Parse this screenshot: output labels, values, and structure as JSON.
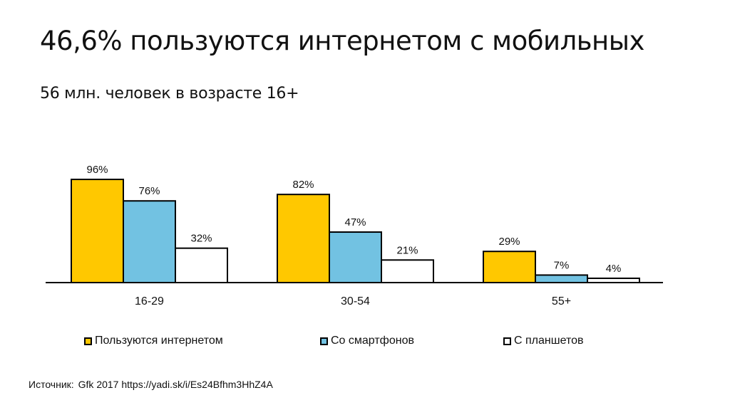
{
  "title": "46,6% пользуются интернетом с мобильных",
  "subtitle": "56 млн. человек в возрасте 16+",
  "source": {
    "label": "Источник:",
    "text": "Gfk 2017 https://yadi.sk/i/Es24Bfhm3HhZ4A"
  },
  "colors": {
    "internet": "#FFC800",
    "smartphone": "#72C2E2",
    "tablet": "#FFFFFF",
    "outline": "#000000"
  },
  "chart_data": {
    "type": "bar",
    "categories": [
      "16-29",
      "30-54",
      "55+"
    ],
    "series": [
      {
        "name": "Пользуются интернетом",
        "values": [
          96,
          82,
          29
        ],
        "labels": [
          "96%",
          "82%",
          "29%"
        ],
        "color": "#FFC800"
      },
      {
        "name": "Со смартфонов",
        "values": [
          76,
          47,
          7
        ],
        "labels": [
          "76%",
          "47%",
          "7%"
        ],
        "color": "#72C2E2"
      },
      {
        "name": "С планшетов",
        "values": [
          32,
          21,
          4
        ],
        "labels": [
          "32%",
          "21%",
          "4%"
        ],
        "color": "#FFFFFF"
      }
    ],
    "ylim": [
      0,
      100
    ],
    "grid": false,
    "legend_position": "bottom"
  }
}
